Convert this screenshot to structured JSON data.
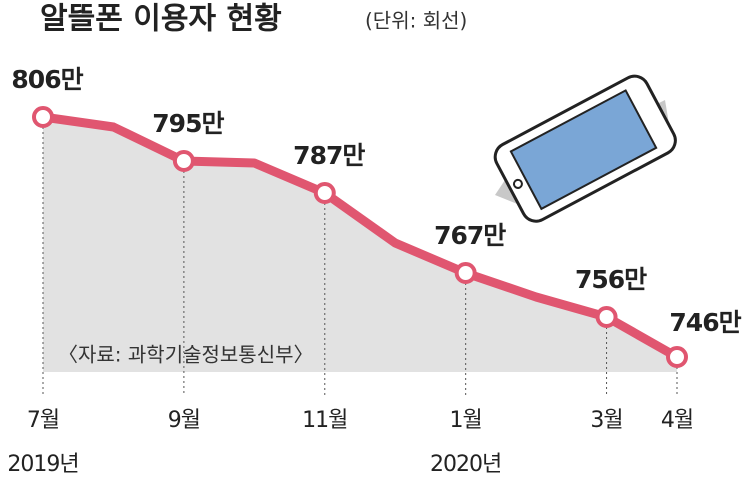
{
  "chart_data": {
    "type": "line",
    "title": "알뜰폰 이용자 현황",
    "subtitle": "(단위: 회선)",
    "categories": [
      "7월",
      null,
      "9월",
      null,
      "11월",
      null,
      "1월",
      null,
      "3월",
      "4월"
    ],
    "year_labels": [
      "2019년",
      "2020년"
    ],
    "values": [
      806,
      803.5,
      795,
      794.5,
      787,
      774.5,
      767,
      761,
      756,
      746
    ],
    "value_labels": [
      "806만",
      null,
      "795만",
      null,
      "787만",
      null,
      "767만",
      null,
      "756만",
      "746만"
    ],
    "color": "#e05670",
    "area_color": "#e2e2e2",
    "source": "〈자료: 과학기술정보통신부〉"
  }
}
